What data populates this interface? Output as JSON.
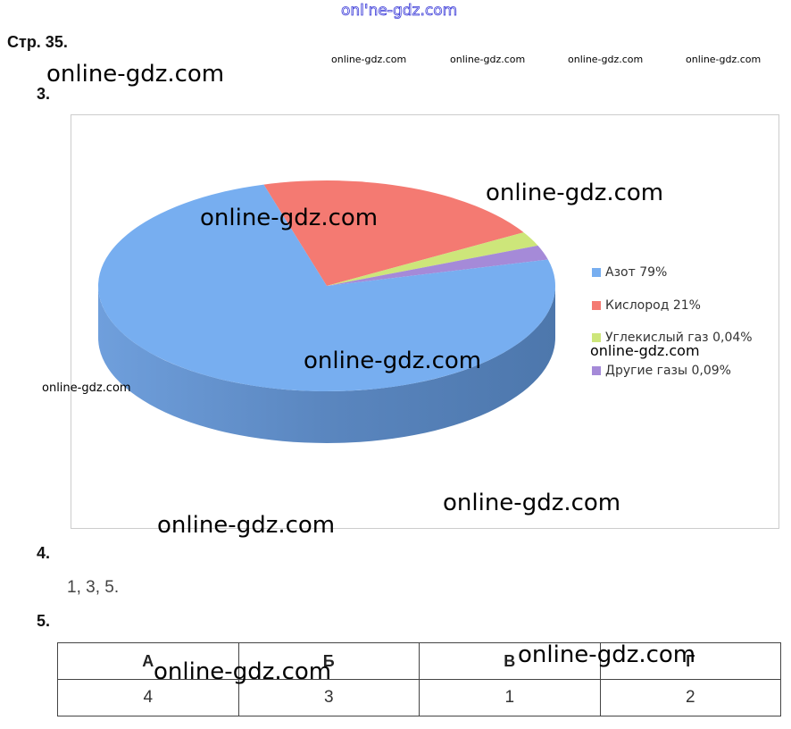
{
  "watermarks": {
    "top": "onl'ne-gdz.com",
    "main": "online-gdz.com"
  },
  "page_label": "Стр. 35.",
  "q3": {
    "number": "3."
  },
  "chart_data": {
    "type": "pie",
    "style": "3d",
    "legend_position": "right",
    "categories": [
      "Азот 79%",
      "Кислород 21%",
      "Углекислый газ 0,04%",
      "Другие газы 0,09%"
    ],
    "values": [
      79,
      21,
      0.04,
      0.09
    ],
    "colors": [
      "#77aef0",
      "#f47a72",
      "#cde67a",
      "#a58ad8"
    ]
  },
  "q4": {
    "number": "4.",
    "answer": "1, 3, 5."
  },
  "q5": {
    "number": "5.",
    "headers": [
      "А",
      "Б",
      "В",
      "Г"
    ],
    "values": [
      "4",
      "3",
      "1",
      "2"
    ]
  }
}
